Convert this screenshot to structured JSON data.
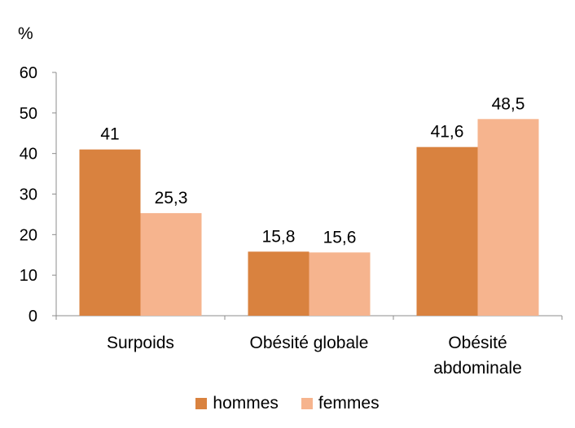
{
  "chart_data": {
    "type": "bar",
    "unit_label": "%",
    "categories": [
      [
        "Surpoids"
      ],
      [
        "Obésité globale"
      ],
      [
        "Obésité",
        "abdominale"
      ]
    ],
    "series": [
      {
        "name": "hommes",
        "values": [
          41,
          15.8,
          41.6
        ],
        "value_labels": [
          "41",
          "15,8",
          "41,6"
        ],
        "color": "#D9823F"
      },
      {
        "name": "femmes",
        "values": [
          25.3,
          15.6,
          48.5
        ],
        "value_labels": [
          "25,3",
          "15,6",
          "48,5"
        ],
        "color": "#F6B48E"
      }
    ],
    "yticks": [
      0,
      10,
      20,
      30,
      40,
      50,
      60
    ],
    "ylim": [
      0,
      60
    ],
    "grid": false,
    "legend_position": "bottom"
  }
}
